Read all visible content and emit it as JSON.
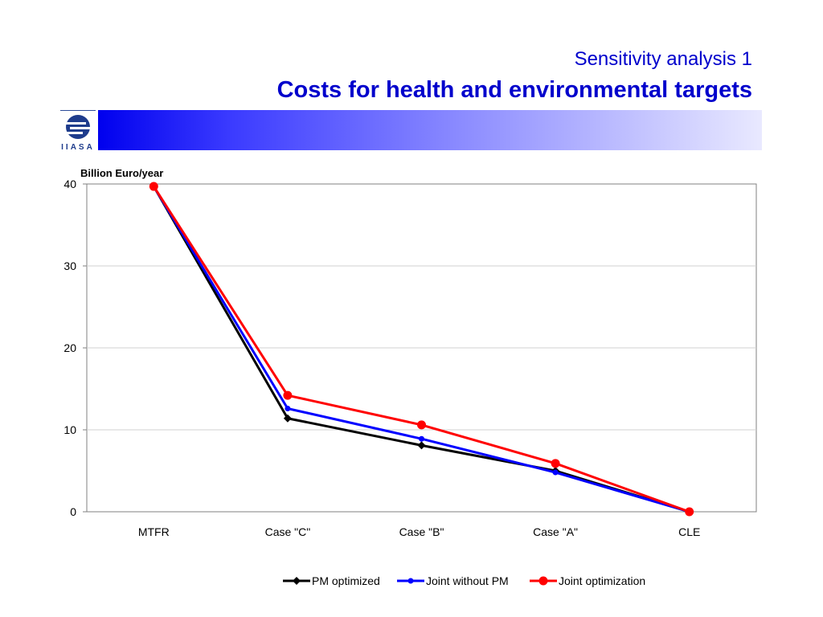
{
  "slide": {
    "subtitle": "Sensitivity analysis 1",
    "title": "Costs for health and environmental targets",
    "logo_text": "IIASA"
  },
  "colors": {
    "title": "#0000cc",
    "band_start": "#0000ee",
    "band_end": "#e9e9ff"
  },
  "chart_data": {
    "type": "line",
    "ylabel": "Billion Euro/year",
    "xlabel": "",
    "categories": [
      "MTFR",
      "Case \"C\"",
      "Case \"B\"",
      "Case \"A\"",
      "CLE"
    ],
    "ylim": [
      0,
      40
    ],
    "yticks": [
      0,
      10,
      20,
      30,
      40
    ],
    "grid": true,
    "legend": "bottom",
    "series": [
      {
        "name": "PM optimized",
        "values": [
          39.7,
          11.4,
          8.1,
          5.0,
          0
        ],
        "color": "#000000",
        "marker": "diamond"
      },
      {
        "name": "Joint without PM",
        "values": [
          39.7,
          12.6,
          8.9,
          4.8,
          0
        ],
        "color": "#0000ff",
        "marker": "circle-small"
      },
      {
        "name": "Joint optimization",
        "values": [
          39.7,
          14.2,
          10.6,
          5.9,
          0
        ],
        "color": "#ff0000",
        "marker": "circle-large"
      }
    ]
  }
}
